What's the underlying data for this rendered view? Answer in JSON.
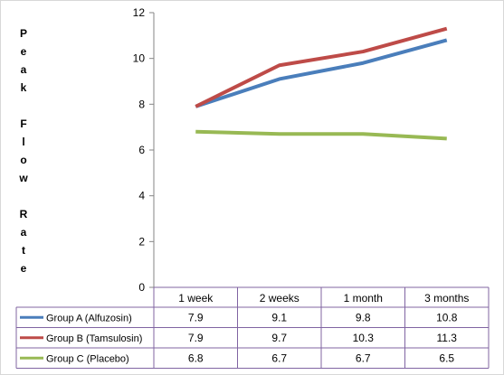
{
  "chart_data": {
    "type": "line",
    "title": "",
    "xlabel": "",
    "ylabel": "Peak Flow Rate",
    "categories": [
      "1 week",
      "2 weeks",
      "1 month",
      "3 months"
    ],
    "ylim": [
      0,
      12
    ],
    "yticks": [
      "0",
      "2",
      "4",
      "6",
      "8",
      "10",
      "12"
    ],
    "grid": false,
    "legend": "data-table",
    "series": [
      {
        "name": "Group A (Alfuzosin)",
        "color": "#4a7ebb",
        "values": [
          7.9,
          9.1,
          9.8,
          10.8
        ],
        "labels": [
          "7.9",
          "9.1",
          "9.8",
          "10.8"
        ]
      },
      {
        "name": "Group B (Tamsulosin)",
        "color": "#be4b48",
        "values": [
          7.9,
          9.7,
          10.3,
          11.3
        ],
        "labels": [
          "7.9",
          "9.7",
          "10.3",
          "11.3"
        ]
      },
      {
        "name": "Group C (Placebo)",
        "color": "#98b954",
        "values": [
          6.8,
          6.7,
          6.7,
          6.5
        ],
        "labels": [
          "6.8",
          "6.7",
          "6.7",
          "6.5"
        ]
      }
    ]
  }
}
